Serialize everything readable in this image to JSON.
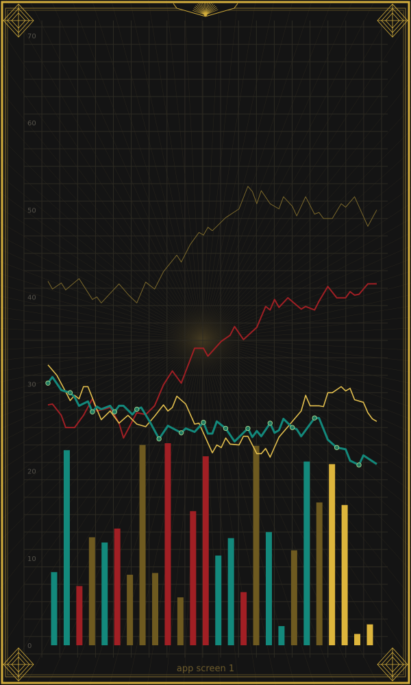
{
  "caption": "app screen 1",
  "colors": {
    "background": "#141414",
    "frame": "#d4ae3c",
    "grid": "#2c2a22",
    "teal": "#13897c",
    "red": "#a11f24",
    "olive": "#6e5a20",
    "yellow": "#ddb53c",
    "olive_line": "#7d6a2c",
    "yellow_line": "#e3bf4e"
  },
  "chart_data": {
    "type": "bar+line",
    "title": "",
    "xlabel": "",
    "ylabel": "",
    "ylim": [
      0,
      70
    ],
    "yticks": [
      "0",
      "10",
      "20",
      "30",
      "40",
      "50",
      "60",
      "70"
    ],
    "grid": true,
    "legend": "none",
    "bars": {
      "values": [
        8.4,
        22.4,
        6.8,
        12.4,
        11.8,
        13.4,
        8.1,
        23.0,
        8.3,
        23.2,
        5.5,
        15.4,
        21.7,
        10.3,
        12.3,
        6.1,
        22.9,
        13.0,
        2.2,
        10.9,
        21.1,
        16.4,
        20.8,
        16.1,
        1.3,
        2.4
      ],
      "colors": [
        "teal",
        "teal",
        "red",
        "olive",
        "teal",
        "red",
        "olive",
        "olive",
        "olive",
        "red",
        "olive",
        "red",
        "red",
        "teal",
        "teal",
        "red",
        "olive",
        "teal",
        "teal",
        "olive",
        "teal",
        "olive",
        "yellow",
        "yellow",
        "yellow",
        "yellow"
      ]
    },
    "x_range": [
      0,
      74
    ],
    "series": [
      {
        "color": "olive_line",
        "width": 1,
        "points": [
          [
            0,
            41.8
          ],
          [
            1,
            40.9
          ],
          [
            3,
            41.6
          ],
          [
            4,
            40.8
          ],
          [
            7,
            42.1
          ],
          [
            10,
            39.7
          ],
          [
            11,
            40.0
          ],
          [
            12,
            39.3
          ],
          [
            14,
            40.4
          ],
          [
            16,
            41.5
          ],
          [
            18,
            40.3
          ],
          [
            20,
            39.3
          ],
          [
            22,
            41.7
          ],
          [
            24,
            40.9
          ],
          [
            26,
            42.9
          ],
          [
            29,
            44.8
          ],
          [
            30,
            44.0
          ],
          [
            32,
            46.0
          ],
          [
            34,
            47.4
          ],
          [
            35,
            47.1
          ],
          [
            36,
            48.0
          ],
          [
            37,
            47.6
          ],
          [
            40,
            49.1
          ],
          [
            43,
            50.1
          ],
          [
            45,
            52.7
          ],
          [
            46,
            52.1
          ],
          [
            47,
            50.7
          ],
          [
            48,
            52.2
          ],
          [
            50,
            50.7
          ],
          [
            52,
            50.1
          ],
          [
            53,
            51.5
          ],
          [
            55,
            50.4
          ],
          [
            56,
            49.3
          ],
          [
            58,
            51.5
          ],
          [
            60,
            49.5
          ],
          [
            61,
            49.7
          ],
          [
            62,
            49.0
          ],
          [
            64,
            49.0
          ],
          [
            66,
            50.7
          ],
          [
            67,
            50.3
          ],
          [
            69,
            51.5
          ],
          [
            72,
            48.1
          ],
          [
            74,
            50.0
          ]
        ]
      },
      {
        "color": "red",
        "width": 2,
        "points": [
          [
            0,
            27.6
          ],
          [
            1,
            27.7
          ],
          [
            3,
            26.4
          ],
          [
            4,
            25.0
          ],
          [
            6,
            25.0
          ],
          [
            8,
            26.4
          ],
          [
            10,
            28.3
          ],
          [
            11,
            26.9
          ],
          [
            14,
            27.3
          ],
          [
            16,
            25.5
          ],
          [
            17,
            23.8
          ],
          [
            20,
            26.7
          ],
          [
            22,
            26.5
          ],
          [
            24,
            27.5
          ],
          [
            26,
            29.9
          ],
          [
            28,
            31.5
          ],
          [
            30,
            30.1
          ],
          [
            33,
            34.1
          ],
          [
            35,
            34.1
          ],
          [
            36,
            33.2
          ],
          [
            39,
            34.9
          ],
          [
            41,
            35.6
          ],
          [
            42,
            36.6
          ],
          [
            44,
            35.1
          ],
          [
            47,
            36.5
          ],
          [
            49,
            38.9
          ],
          [
            50,
            38.5
          ],
          [
            51,
            39.7
          ],
          [
            52,
            38.8
          ],
          [
            54,
            39.9
          ],
          [
            57,
            38.6
          ],
          [
            58,
            38.9
          ],
          [
            60,
            38.5
          ],
          [
            61,
            39.5
          ],
          [
            63,
            41.2
          ],
          [
            65,
            39.9
          ],
          [
            67,
            39.9
          ],
          [
            68,
            40.6
          ],
          [
            69,
            40.2
          ],
          [
            70,
            40.3
          ],
          [
            72,
            41.5
          ],
          [
            74,
            41.5
          ]
        ]
      },
      {
        "color": "yellow_line",
        "width": 1.6,
        "points": [
          [
            0,
            32.2
          ],
          [
            2,
            31.0
          ],
          [
            4,
            29.1
          ],
          [
            5,
            28.1
          ],
          [
            6,
            28.7
          ],
          [
            7,
            28.3
          ],
          [
            8,
            29.7
          ],
          [
            9,
            29.7
          ],
          [
            11,
            27.1
          ],
          [
            12,
            25.9
          ],
          [
            14,
            26.9
          ],
          [
            16,
            25.5
          ],
          [
            18,
            26.4
          ],
          [
            20,
            25.4
          ],
          [
            22,
            25.1
          ],
          [
            24,
            26.3
          ],
          [
            26,
            27.6
          ],
          [
            27,
            26.9
          ],
          [
            28,
            27.3
          ],
          [
            29,
            28.6
          ],
          [
            31,
            27.7
          ],
          [
            33,
            25.4
          ],
          [
            34,
            25.5
          ],
          [
            37,
            22.1
          ],
          [
            38,
            23.0
          ],
          [
            39,
            22.7
          ],
          [
            40,
            23.8
          ],
          [
            41,
            23.1
          ],
          [
            43,
            23.0
          ],
          [
            44,
            24.0
          ],
          [
            45,
            24.0
          ],
          [
            47,
            22.0
          ],
          [
            48,
            22.0
          ],
          [
            49,
            22.6
          ],
          [
            50,
            21.6
          ],
          [
            52,
            23.9
          ],
          [
            54,
            25.1
          ],
          [
            57,
            26.9
          ],
          [
            58,
            28.7
          ],
          [
            59,
            27.5
          ],
          [
            61,
            27.5
          ],
          [
            62,
            27.4
          ],
          [
            63,
            29.0
          ],
          [
            64,
            29.0
          ],
          [
            66,
            29.7
          ],
          [
            67,
            29.2
          ],
          [
            68,
            29.5
          ],
          [
            69,
            28.2
          ],
          [
            71,
            27.9
          ],
          [
            72,
            26.7
          ],
          [
            73,
            26.0
          ],
          [
            74,
            25.7
          ]
        ]
      },
      {
        "color": "teal",
        "width": 3,
        "markers_every": 5,
        "points": [
          [
            0,
            30.1
          ],
          [
            1,
            30.8
          ],
          [
            3,
            29.3
          ],
          [
            5,
            29.0
          ],
          [
            6,
            28.5
          ],
          [
            7,
            27.5
          ],
          [
            9,
            28.0
          ],
          [
            10,
            26.8
          ],
          [
            11,
            27.4
          ],
          [
            12,
            27.1
          ],
          [
            14,
            27.5
          ],
          [
            15,
            26.8
          ],
          [
            16,
            27.5
          ],
          [
            17,
            27.5
          ],
          [
            19,
            26.5
          ],
          [
            20,
            27.1
          ],
          [
            21,
            27.3
          ],
          [
            23,
            25.6
          ],
          [
            25,
            23.7
          ],
          [
            27,
            25.2
          ],
          [
            30,
            24.4
          ],
          [
            31,
            24.9
          ],
          [
            33,
            24.5
          ],
          [
            35,
            25.6
          ],
          [
            36,
            24.3
          ],
          [
            37,
            24.3
          ],
          [
            38,
            25.7
          ],
          [
            40,
            24.9
          ],
          [
            42,
            23.4
          ],
          [
            45,
            24.9
          ],
          [
            46,
            23.9
          ],
          [
            47,
            24.6
          ],
          [
            48,
            24.0
          ],
          [
            50,
            25.5
          ],
          [
            51,
            24.4
          ],
          [
            52,
            24.7
          ],
          [
            53,
            26.0
          ],
          [
            55,
            25.0
          ],
          [
            56,
            24.8
          ],
          [
            57,
            24.0
          ],
          [
            60,
            26.1
          ],
          [
            61,
            26.1
          ],
          [
            63,
            23.6
          ],
          [
            65,
            22.7
          ],
          [
            67,
            22.5
          ],
          [
            68,
            21.2
          ],
          [
            70,
            20.7
          ],
          [
            71,
            21.8
          ],
          [
            74,
            20.8
          ]
        ]
      }
    ]
  }
}
